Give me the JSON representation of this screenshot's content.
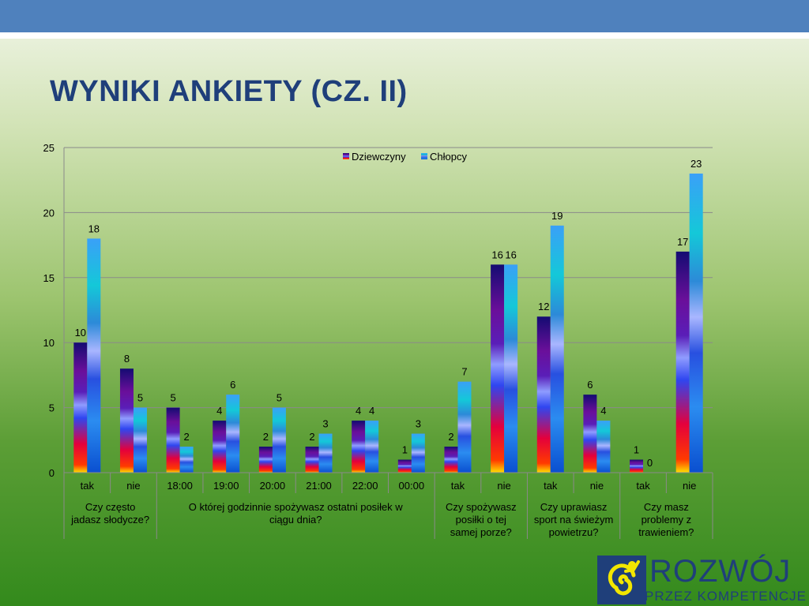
{
  "slide": {
    "title": "WYNIKI ANKIETY (CZ. II)",
    "colors": {
      "top_bar": "#4f81bd",
      "title": "#1f3f7a"
    }
  },
  "logo": {
    "line1": "ROZWÓJ",
    "line2": "PRZEZ KOMPETENCJE",
    "icon": "yellow-spiral-person-icon"
  },
  "chart_data": {
    "type": "bar",
    "ylim": [
      0,
      25
    ],
    "yticks": [
      0,
      5,
      10,
      15,
      20,
      25
    ],
    "grid": true,
    "legend_position": "top-center",
    "categories": [
      "tak",
      "nie",
      "18:00",
      "19:00",
      "20:00",
      "21:00",
      "22:00",
      "00:00",
      "tak",
      "nie",
      "tak",
      "nie",
      "tak",
      "nie"
    ],
    "groups": [
      {
        "label": "Czy często jadasz słodycze?",
        "start": 0,
        "end": 1
      },
      {
        "label": "O której godzinnie spożywasz ostatni posiłek w ciągu dnia?",
        "start": 2,
        "end": 7
      },
      {
        "label": "Czy spożywasz posiłki o tej samej porze?",
        "start": 8,
        "end": 9
      },
      {
        "label": "Czy uprawiasz sport na świeżym powietrzu?",
        "start": 10,
        "end": 11
      },
      {
        "label": "Czy masz problemy z trawieniem?",
        "start": 12,
        "end": 13
      }
    ],
    "series": [
      {
        "name": "Dziewczyny",
        "values": [
          10,
          8,
          5,
          4,
          2,
          2,
          4,
          1,
          2,
          16,
          12,
          6,
          1,
          17
        ]
      },
      {
        "name": "Chłopcy",
        "values": [
          18,
          5,
          2,
          6,
          5,
          3,
          4,
          3,
          7,
          16,
          19,
          4,
          0,
          23
        ]
      }
    ]
  }
}
